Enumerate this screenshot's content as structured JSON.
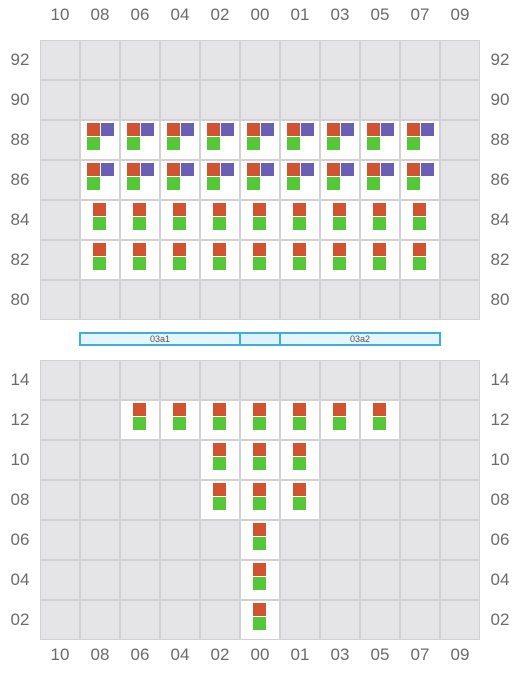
{
  "columns": [
    "10",
    "08",
    "06",
    "04",
    "02",
    "00",
    "01",
    "03",
    "05",
    "07",
    "09"
  ],
  "top_block": {
    "rows": [
      "92",
      "90",
      "88",
      "86",
      "84",
      "82",
      "80"
    ],
    "seat_rows": [
      "88",
      "86",
      "84",
      "82"
    ],
    "seat_cols": [
      "08",
      "06",
      "04",
      "02",
      "00",
      "01",
      "03",
      "05",
      "07"
    ],
    "triple_rows": [
      "88",
      "86"
    ],
    "double_rows": [
      "84",
      "82"
    ]
  },
  "gates": [
    {
      "label": "03a1"
    },
    {
      "label": "03a2"
    }
  ],
  "bottom_block": {
    "rows": [
      "14",
      "12",
      "10",
      "08",
      "06",
      "04",
      "02"
    ],
    "seats": [
      {
        "row": "12",
        "cols": [
          "06",
          "04",
          "02",
          "00",
          "01",
          "03",
          "05"
        ]
      },
      {
        "row": "10",
        "cols": [
          "02",
          "00",
          "01"
        ]
      },
      {
        "row": "08",
        "cols": [
          "02",
          "00",
          "01"
        ]
      },
      {
        "row": "06",
        "cols": [
          "00"
        ]
      },
      {
        "row": "04",
        "cols": [
          "00"
        ]
      },
      {
        "row": "02",
        "cols": [
          "00"
        ]
      }
    ]
  },
  "colors": {
    "red": "#d1532f",
    "green": "#55c83a",
    "purple": "#6b5fb3",
    "cell_bg": "#e5e5e7",
    "cell_on": "#ffffff",
    "gate_border": "#3cb0dc"
  }
}
